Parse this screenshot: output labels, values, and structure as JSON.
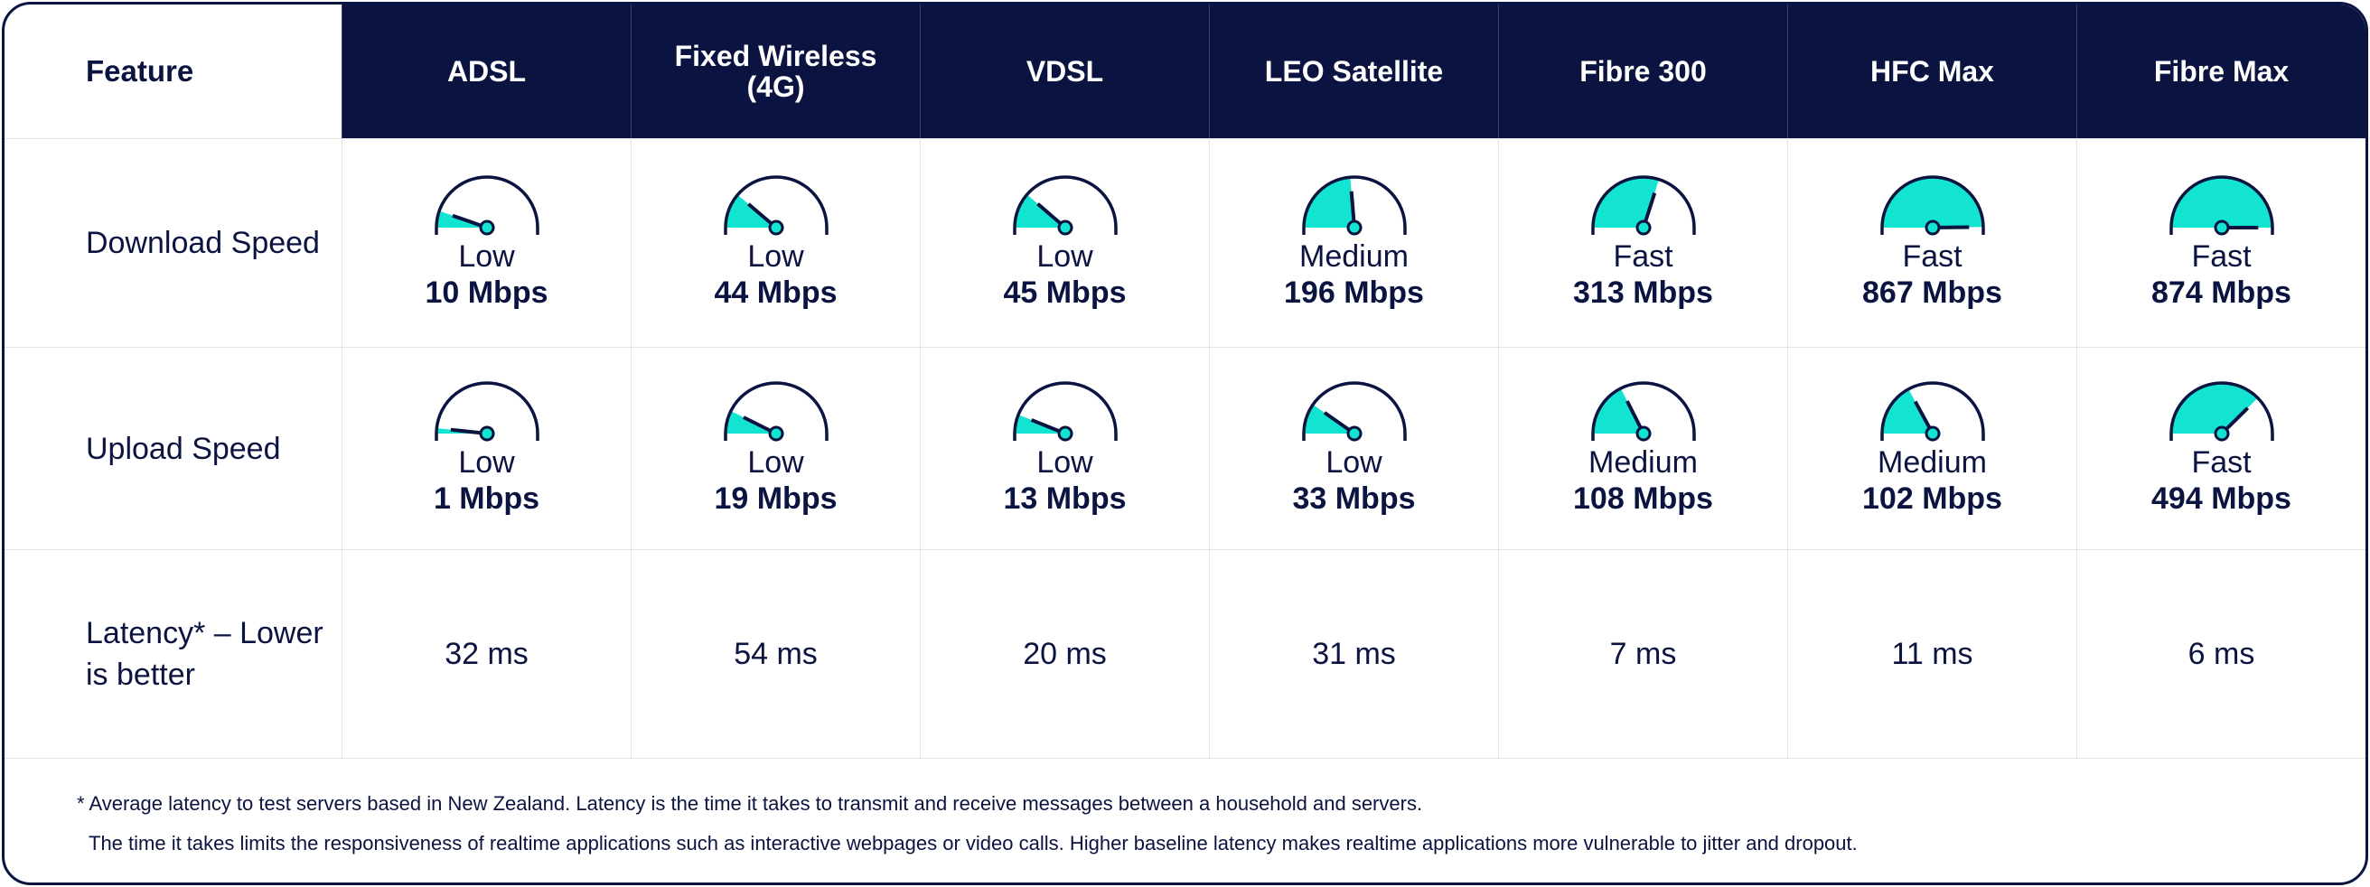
{
  "table": {
    "columns": [
      "Feature",
      "ADSL",
      "Fixed Wireless (4G)",
      "VDSL",
      "LEO Satellite",
      "Fibre 300",
      "HFC Max",
      "Fibre Max"
    ],
    "rows": [
      {
        "label": "Download Speed",
        "cells": [
          {
            "level": "Low",
            "value": 10,
            "value_label": "10 Mbps"
          },
          {
            "level": "Low",
            "value": 44,
            "value_label": "44 Mbps"
          },
          {
            "level": "Low",
            "value": 45,
            "value_label": "45 Mbps"
          },
          {
            "level": "Medium",
            "value": 196,
            "value_label": "196 Mbps"
          },
          {
            "level": "Fast",
            "value": 313,
            "value_label": "313 Mbps"
          },
          {
            "level": "Fast",
            "value": 867,
            "value_label": "867 Mbps"
          },
          {
            "level": "Fast",
            "value": 874,
            "value_label": "874 Mbps"
          }
        ]
      },
      {
        "label": "Upload Speed",
        "cells": [
          {
            "level": "Low",
            "value": 1,
            "value_label": "1 Mbps"
          },
          {
            "level": "Low",
            "value": 19,
            "value_label": "19 Mbps"
          },
          {
            "level": "Low",
            "value": 13,
            "value_label": "13 Mbps"
          },
          {
            "level": "Low",
            "value": 33,
            "value_label": "33 Mbps"
          },
          {
            "level": "Medium",
            "value": 108,
            "value_label": "108 Mbps"
          },
          {
            "level": "Medium",
            "value": 102,
            "value_label": "102 Mbps"
          },
          {
            "level": "Fast",
            "value": 494,
            "value_label": "494 Mbps"
          }
        ]
      },
      {
        "label": "Latency* – Lower is better",
        "cells": [
          "32 ms",
          "54 ms",
          "20 ms",
          "31 ms",
          "7 ms",
          "11 ms",
          "6 ms"
        ]
      }
    ],
    "footnote": [
      "* Average latency to test servers based in New Zealand.  Latency is the time it takes to transmit and receive messages between a household and servers.",
      "The time it takes limits the responsiveness of realtime applications such as interactive webpages or video calls.  Higher baseline latency makes realtime applications more vulnerable to jitter and dropout."
    ]
  }
}
